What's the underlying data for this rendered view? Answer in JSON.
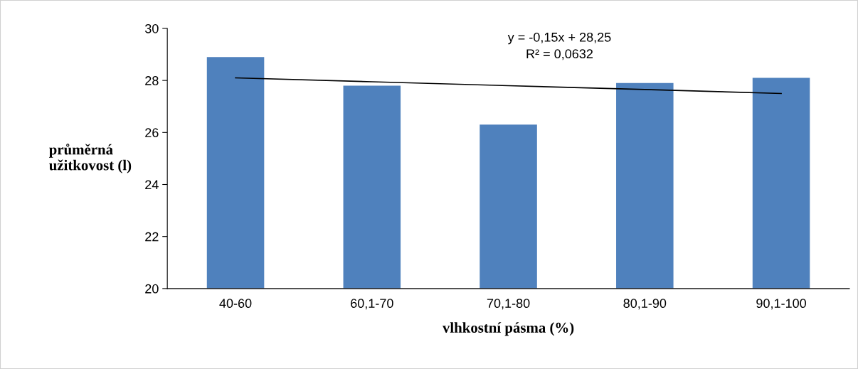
{
  "chart_data": {
    "type": "bar",
    "xlabel": "vlhkostní pásma (%)",
    "ylabel": "průměrná\nužitkovost (l)",
    "categories": [
      "40-60",
      "60,1-70",
      "70,1-80",
      "80,1-90",
      "90,1-100"
    ],
    "series": [
      {
        "color": "#4f81bd",
        "values": [
          28.9,
          27.8,
          26.3,
          27.9,
          28.1
        ]
      },
      {
        "type": "line",
        "color": "#000000",
        "values": [
          28.1,
          27.95,
          27.8,
          27.65,
          27.5
        ]
      }
    ],
    "annotations": [
      "y = -0,15x + 28,25\nR² = 0,0632"
    ],
    "ylim": [
      20,
      30
    ],
    "yticks": [
      20,
      22,
      24,
      26,
      28,
      30
    ],
    "grid": false,
    "legend": false
  }
}
